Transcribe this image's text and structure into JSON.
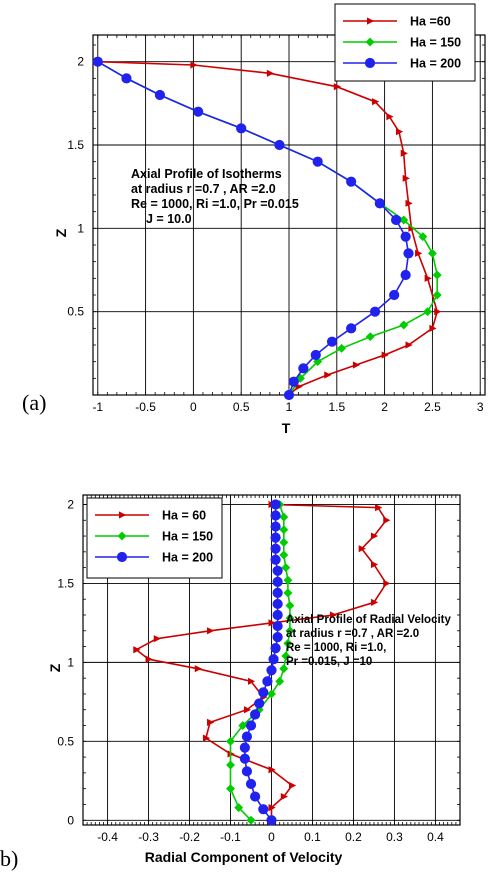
{
  "chart_data": [
    {
      "type": "line",
      "panel_label": "(a)",
      "xlabel": "T",
      "ylabel": "Z",
      "xlim": [
        -1.05,
        3.05
      ],
      "ylim": [
        0,
        2.16
      ],
      "xticks": [
        "-1",
        "-0.5",
        "0",
        "0.5",
        "1",
        "1.5",
        "2",
        "2.5",
        "3"
      ],
      "yticks": [
        "0.5",
        "1",
        "1.5",
        "2"
      ],
      "grid": true,
      "legend_position": "top-right",
      "annotation": [
        "Axial Profile of Isotherms",
        "at radius r =0.7 , AR =2.0",
        "Re = 1000, Ri =1.0, Pr =0.015",
        "J = 10.0"
      ],
      "series": [
        {
          "name": "Ha =60",
          "color": "#cc0000",
          "marker": "triangle-right",
          "x": [
            -1.0,
            0.0,
            0.8,
            1.5,
            1.9,
            2.05,
            2.15,
            2.2,
            2.22,
            2.25,
            2.28,
            2.35,
            2.45,
            2.55,
            2.5,
            2.25,
            2.0,
            1.7,
            1.4,
            1.1,
            1.0
          ],
          "y": [
            2.0,
            1.98,
            1.93,
            1.85,
            1.76,
            1.67,
            1.58,
            1.45,
            1.3,
            1.15,
            1.0,
            0.85,
            0.7,
            0.5,
            0.4,
            0.3,
            0.24,
            0.18,
            0.12,
            0.05,
            0.0
          ]
        },
        {
          "name": "Ha = 150",
          "color": "#00cc00",
          "marker": "diamond",
          "x": [
            -1.0,
            -0.7,
            -0.35,
            0.05,
            0.5,
            0.9,
            1.3,
            1.65,
            1.95,
            2.2,
            2.4,
            2.5,
            2.55,
            2.55,
            2.45,
            2.2,
            1.85,
            1.55,
            1.3,
            1.12,
            1.0
          ],
          "y": [
            2.0,
            1.9,
            1.8,
            1.7,
            1.6,
            1.5,
            1.4,
            1.28,
            1.15,
            1.05,
            0.95,
            0.85,
            0.72,
            0.6,
            0.5,
            0.42,
            0.35,
            0.28,
            0.2,
            0.1,
            0.0
          ]
        },
        {
          "name": "Ha = 200",
          "color": "#2222ee",
          "marker": "circle",
          "x": [
            -1.0,
            -0.7,
            -0.35,
            0.05,
            0.5,
            0.9,
            1.3,
            1.65,
            1.95,
            2.12,
            2.22,
            2.25,
            2.22,
            2.1,
            1.9,
            1.65,
            1.45,
            1.28,
            1.15,
            1.05,
            1.0
          ],
          "y": [
            2.0,
            1.9,
            1.8,
            1.7,
            1.6,
            1.5,
            1.4,
            1.28,
            1.15,
            1.05,
            0.95,
            0.85,
            0.72,
            0.6,
            0.5,
            0.4,
            0.32,
            0.24,
            0.16,
            0.08,
            0.0
          ]
        }
      ]
    },
    {
      "type": "line",
      "panel_label": "b)",
      "xlabel": "Radial Component of Velocity",
      "ylabel": "Z",
      "xlim": [
        -0.46,
        0.46
      ],
      "ylim": [
        -0.03,
        2.06
      ],
      "xticks": [
        "-0.4",
        "-0.3",
        "-0.2",
        "-0.1",
        "0",
        "0.1",
        "0.2",
        "0.3",
        "0.4"
      ],
      "yticks": [
        "0",
        "0.5",
        "1",
        "1.5",
        "2"
      ],
      "grid": true,
      "legend_position": "top-left",
      "annotation": [
        "Axial Profile of Radial Velocity",
        "at radius r =0.7 , AR =2.0",
        "Re = 1000, Ri =1.0,",
        "Pr =0.015, J =10"
      ],
      "series": [
        {
          "name": "Ha = 60",
          "color": "#cc0000",
          "marker": "triangle-right",
          "x": [
            0.0,
            0.26,
            0.28,
            0.25,
            0.22,
            0.25,
            0.28,
            0.25,
            0.15,
            0.0,
            -0.15,
            -0.28,
            -0.33,
            -0.3,
            -0.18,
            -0.05,
            -0.02,
            -0.06,
            -0.15,
            -0.16,
            -0.1,
            0.0,
            0.05,
            0.03,
            0.0,
            0.0
          ],
          "y": [
            2.0,
            1.98,
            1.9,
            1.8,
            1.72,
            1.62,
            1.5,
            1.38,
            1.3,
            1.25,
            1.2,
            1.15,
            1.08,
            1.02,
            0.96,
            0.88,
            0.78,
            0.7,
            0.62,
            0.52,
            0.42,
            0.32,
            0.22,
            0.15,
            0.08,
            0.0
          ]
        },
        {
          "name": "Ha = 150",
          "color": "#00cc00",
          "marker": "diamond",
          "x": [
            0.02,
            0.03,
            0.03,
            0.03,
            0.03,
            0.035,
            0.04,
            0.04,
            0.045,
            0.045,
            0.045,
            0.04,
            0.035,
            0.03,
            0.02,
            0.0,
            -0.03,
            -0.07,
            -0.1,
            -0.1,
            -0.1,
            -0.08,
            -0.05
          ],
          "y": [
            2.0,
            1.92,
            1.84,
            1.76,
            1.68,
            1.6,
            1.52,
            1.44,
            1.36,
            1.28,
            1.2,
            1.12,
            1.04,
            0.96,
            0.88,
            0.8,
            0.7,
            0.6,
            0.5,
            0.35,
            0.2,
            0.08,
            0.0
          ]
        },
        {
          "name": "Ha = 200",
          "color": "#2222ee",
          "marker": "circle",
          "x": [
            0.01,
            0.01,
            0.01,
            0.01,
            0.01,
            0.01,
            0.015,
            0.015,
            0.015,
            0.015,
            0.015,
            0.015,
            0.015,
            0.01,
            0.005,
            0.0,
            -0.01,
            -0.02,
            -0.03,
            -0.04,
            -0.05,
            -0.06,
            -0.065,
            -0.065,
            -0.06,
            -0.05,
            -0.04,
            -0.02,
            0.0
          ],
          "y": [
            2.0,
            1.93,
            1.86,
            1.79,
            1.72,
            1.65,
            1.58,
            1.51,
            1.44,
            1.37,
            1.3,
            1.23,
            1.16,
            1.09,
            1.02,
            0.95,
            0.88,
            0.81,
            0.74,
            0.67,
            0.6,
            0.53,
            0.46,
            0.39,
            0.31,
            0.23,
            0.15,
            0.07,
            0.0
          ]
        }
      ]
    }
  ]
}
